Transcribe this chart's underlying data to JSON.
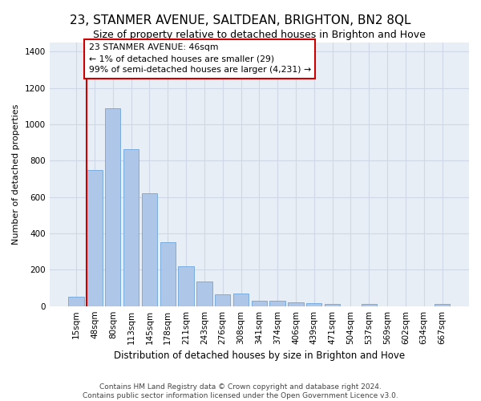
{
  "title1": "23, STANMER AVENUE, SALTDEAN, BRIGHTON, BN2 8QL",
  "title2": "Size of property relative to detached houses in Brighton and Hove",
  "xlabel": "Distribution of detached houses by size in Brighton and Hove",
  "ylabel": "Number of detached properties",
  "footnote": "Contains HM Land Registry data © Crown copyright and database right 2024.\nContains public sector information licensed under the Open Government Licence v3.0.",
  "categories": [
    "15sqm",
    "48sqm",
    "80sqm",
    "113sqm",
    "145sqm",
    "178sqm",
    "211sqm",
    "243sqm",
    "276sqm",
    "308sqm",
    "341sqm",
    "374sqm",
    "406sqm",
    "439sqm",
    "471sqm",
    "504sqm",
    "537sqm",
    "569sqm",
    "602sqm",
    "634sqm",
    "667sqm"
  ],
  "bar_heights": [
    50,
    750,
    1090,
    865,
    620,
    350,
    220,
    135,
    65,
    70,
    30,
    30,
    20,
    15,
    10,
    0,
    10,
    0,
    0,
    0,
    10
  ],
  "bar_color": "#aec6e8",
  "bar_edgecolor": "#5b9bd5",
  "grid_color": "#d0d8e8",
  "background_color": "#e8eef5",
  "annotation_box_text": "23 STANMER AVENUE: 46sqm\n← 1% of detached houses are smaller (29)\n99% of semi-detached houses are larger (4,231) →",
  "annotation_box_color": "#cc0000",
  "ylim": [
    0,
    1450
  ],
  "yticks": [
    0,
    200,
    400,
    600,
    800,
    1000,
    1200,
    1400
  ],
  "title1_fontsize": 11,
  "title2_fontsize": 9,
  "ylabel_fontsize": 8,
  "xlabel_fontsize": 8.5,
  "footnote_fontsize": 6.5,
  "tick_fontsize": 7.5
}
